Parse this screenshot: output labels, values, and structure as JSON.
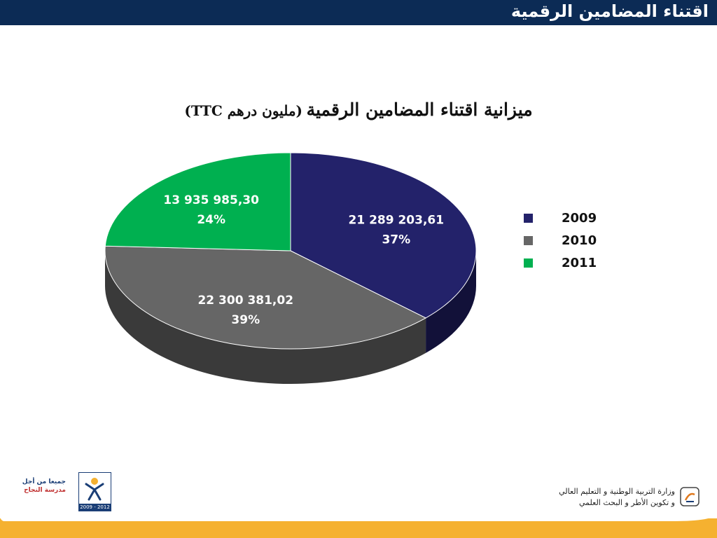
{
  "header": {
    "title": "اقتناء المضامين الرقمية"
  },
  "chart_title": {
    "main": "ميزانية اقتناء المضامين الرقمية",
    "sub": "(مليون درهم TTC)"
  },
  "chart_data": {
    "type": "pie",
    "title": "ميزانية اقتناء المضامين الرقمية (مليون درهم TTC)",
    "series": [
      {
        "name": "2009",
        "value": 21289203.61,
        "value_label": "21 289 203,61",
        "percent_label": "37%",
        "color": "#23226a",
        "side_color": "#121139"
      },
      {
        "name": "2010",
        "value": 22300381.02,
        "value_label": "22 300 381,02",
        "percent_label": "39%",
        "color": "#666666",
        "side_color": "#3a3a3a"
      },
      {
        "name": "2011",
        "value": 13935985.3,
        "value_label": "13 935 985,30",
        "percent_label": "24%",
        "color": "#00b050",
        "side_color": "#007a37"
      }
    ],
    "legend_position": "right",
    "style": "3d"
  },
  "legend": [
    {
      "label": "2009",
      "color": "#23226a"
    },
    {
      "label": "2010",
      "color": "#666666"
    },
    {
      "label": "2011",
      "color": "#00b050"
    }
  ],
  "footer": {
    "left_logo_line1": "جميعا من أجل",
    "left_logo_line2": "مدرسة النجاح",
    "left_logo_years": "2009 - 2012",
    "ministry_line1": "وزارة التربية الوطنية و التعليم العالي",
    "ministry_line2": "و تكوين الأطر و البحث العلمي",
    "accent_color": "#f5b130"
  }
}
